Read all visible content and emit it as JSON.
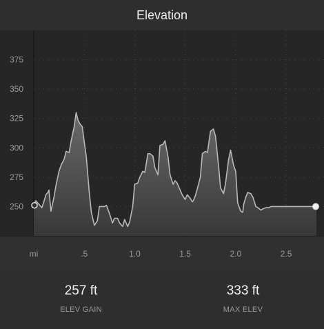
{
  "header": {
    "title": "Elevation"
  },
  "chart_data": {
    "type": "area",
    "title": "",
    "xlabel": "mi",
    "ylabel": "",
    "xlim": [
      0,
      2.8
    ],
    "ylim": [
      225,
      400
    ],
    "y_ticks": [
      250,
      275,
      300,
      325,
      350,
      375
    ],
    "x_tick_labels": [
      {
        "label": "mi",
        "value": 0
      },
      {
        "label": ".5",
        "value": 0.5
      },
      {
        "label": "1.0",
        "value": 1.0
      },
      {
        "label": "1.5",
        "value": 1.5
      },
      {
        "label": "2.0",
        "value": 2.0
      },
      {
        "label": "2.5",
        "value": 2.5
      }
    ],
    "grid": true,
    "series": [
      {
        "x": [
          0,
          0.02,
          0.05,
          0.08,
          0.1,
          0.12,
          0.14,
          0.15,
          0.17,
          0.2,
          0.22,
          0.25,
          0.27,
          0.28,
          0.3,
          0.32,
          0.35,
          0.37,
          0.4,
          0.42,
          0.44,
          0.46,
          0.48,
          0.5,
          0.52,
          0.55,
          0.57,
          0.6,
          0.63,
          0.65,
          0.7,
          0.72,
          0.75,
          0.78,
          0.8,
          0.83,
          0.85,
          0.88,
          0.9,
          0.93,
          0.95,
          0.98,
          1.0,
          1.03,
          1.05,
          1.08,
          1.1,
          1.13,
          1.15,
          1.18,
          1.2,
          1.23,
          1.25,
          1.28,
          1.3,
          1.33,
          1.35,
          1.38,
          1.4,
          1.42,
          1.45,
          1.47,
          1.5,
          1.52,
          1.55,
          1.57,
          1.58,
          1.6,
          1.62,
          1.65,
          1.67,
          1.7,
          1.72,
          1.75,
          1.78,
          1.8,
          1.83,
          1.85,
          1.88,
          1.9,
          1.93,
          1.95,
          1.98,
          2.0,
          2.02,
          2.05,
          2.07,
          2.08,
          2.1,
          2.12,
          2.15,
          2.17,
          2.2,
          2.22,
          2.25,
          2.27,
          2.3,
          2.33,
          2.35,
          2.37,
          2.4,
          2.42,
          2.45,
          2.48,
          2.5,
          2.52,
          2.55,
          2.57,
          2.6,
          2.62,
          2.65,
          2.68,
          2.7,
          2.72,
          2.75,
          2.78,
          2.8
        ],
        "values": [
          251,
          255,
          252,
          249,
          254,
          260,
          262,
          264,
          246,
          258,
          268,
          280,
          285,
          287,
          290,
          297,
          296,
          306,
          318,
          330,
          323,
          320,
          318,
          305,
          293,
          262,
          245,
          234,
          238,
          250,
          250,
          251,
          244,
          236,
          240,
          240,
          236,
          233,
          239,
          233,
          237,
          250,
          269,
          270,
          275,
          280,
          279,
          295,
          295,
          293,
          283,
          277,
          302,
          303,
          306,
          292,
          277,
          269,
          272,
          270,
          264,
          260,
          256,
          260,
          257,
          254,
          255,
          259,
          265,
          275,
          295,
          297,
          296,
          314,
          316,
          310,
          285,
          266,
          261,
          270,
          290,
          298,
          285,
          280,
          253,
          246,
          245,
          252,
          258,
          262,
          261,
          258,
          250,
          249,
          247,
          248,
          249,
          249,
          250,
          250,
          250,
          250,
          250,
          250,
          250,
          250,
          250,
          250,
          250,
          250,
          250,
          250,
          250,
          250,
          250,
          250,
          250
        ]
      }
    ]
  },
  "stats": {
    "gain_value": "257 ft",
    "gain_label": "ELEV GAIN",
    "max_value": "333 ft",
    "max_label": "MAX ELEV"
  }
}
